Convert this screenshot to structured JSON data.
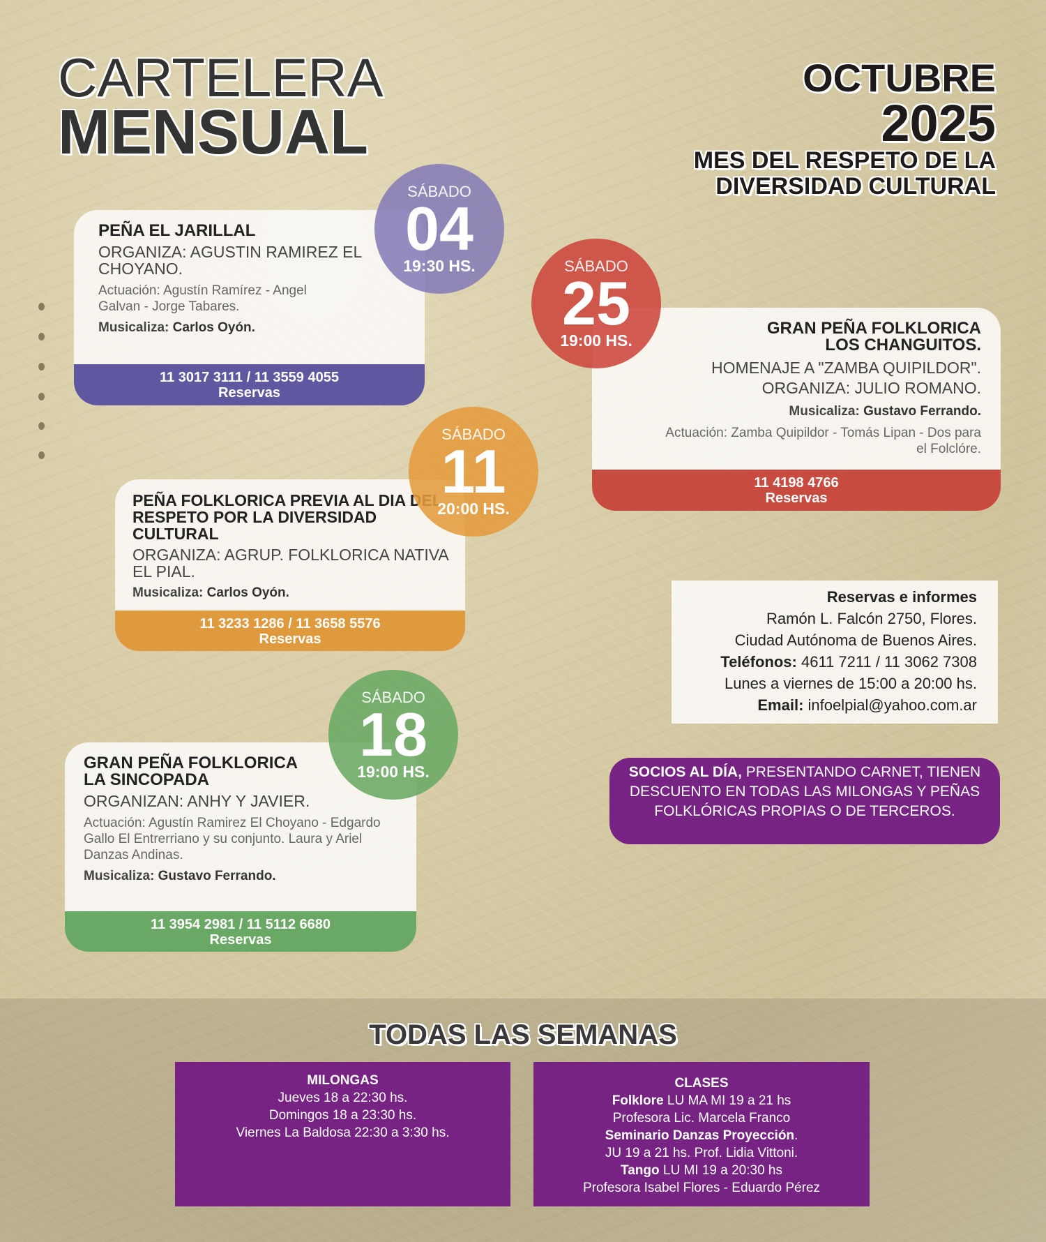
{
  "header": {
    "line1": "CARTELERA",
    "line2": "MENSUAL",
    "month": "OCTUBRE",
    "year": "2025",
    "subtitle1": "MES DEL RESPETO DE LA",
    "subtitle2": "DIVERSIDAD CULTURAL"
  },
  "events": [
    {
      "day": "SÁBADO",
      "date": "04",
      "time": "19:30 HS.",
      "title": "PEÑA EL JARILLAL",
      "org": "ORGANIZA: AGUSTIN RAMIREZ EL CHOYANO.",
      "act": "Actuación: Agustín Ramírez - Angel Galvan - Jorge Tabares.",
      "mus_label": "Musicaliza:",
      "mus": "Carlos Oyón.",
      "phone": "11 3017 3111 / 11 3559 4055",
      "res": "Reservas",
      "color": "#5f58a0"
    },
    {
      "day": "SÁBADO",
      "date": "25",
      "time": "19:00 HS.",
      "title": "GRAN PEÑA FOLKLORICA LOS CHANGUITOS.",
      "org": "HOMENAJE A \"ZAMBA QUIPILDOR\". ORGANIZA: JULIO ROMANO.",
      "act": "Actuación: Zamba Quipildor - Tomás Lipan - Dos para el Folclóre.",
      "mus_label": "Musicaliza:",
      "mus": "Gustavo Ferrando.",
      "phone": "11 4198 4766",
      "res": "Reservas",
      "color": "#c84b3f"
    },
    {
      "day": "SÁBADO",
      "date": "11",
      "time": "20:00 HS.",
      "title": "PEÑA FOLKLORICA PREVIA AL DIA DEL RESPETO POR LA DIVERSIDAD CULTURAL",
      "org": "ORGANIZA: AGRUP. FOLKLORICA NATIVA EL PIAL.",
      "mus_label": "Musicaliza:",
      "mus": "Carlos Oyón.",
      "phone": "11 3233 1286 / 11 3658 5576",
      "res": "Reservas",
      "color": "#e09a3e"
    },
    {
      "day": "SÁBADO",
      "date": "18",
      "time": "19:00 HS.",
      "title": "GRAN PEÑA FOLKLORICA LA SINCOPADA",
      "org": "ORGANIZAN: ANHY Y JAVIER.",
      "act": "Actuación: Agustín Ramirez El Choyano - Edgardo Gallo El Entrerriano y su conjunto. Laura y Ariel Danzas Andinas.",
      "mus_label": "Musicaliza:",
      "mus": "Gustavo Ferrando.",
      "phone": "11 3954 2981 / 11 5112 6680",
      "res": "Reservas",
      "color": "#6aa865"
    }
  ],
  "info": {
    "title": "Reservas e informes",
    "addr1": "Ramón L. Falcón 2750, Flores.",
    "addr2": "Ciudad Autónoma de Buenos Aires.",
    "tel_label": "Teléfonos:",
    "tel": "4611 7211 / 11 3062 7308",
    "hours": "Lunes a viernes de 15:00 a 20:00 hs.",
    "email_label": "Email:",
    "email": "infoelpial@yahoo.com.ar"
  },
  "socios": {
    "bold": "SOCIOS AL DÍA,",
    "text": "PRESENTANDO CARNET, TIENEN DESCUENTO EN TODAS LAS MILONGAS Y PEÑAS FOLKLÓRICAS PROPIAS O DE TERCEROS."
  },
  "weekly": {
    "title": "TODAS LAS SEMANAS",
    "milongas": {
      "title": "MILONGAS",
      "lines": [
        "Jueves 18 a 22:30 hs.",
        "Domingos 18 a 23:30 hs.",
        "Viernes La Baldosa 22:30 a 3:30 hs."
      ]
    },
    "clases": {
      "title": "CLASES",
      "l1b": "Folklore",
      "l1": "LU MA MI 19 a 21 hs",
      "l2": "Profesora Lic. Marcela Franco",
      "l3b": "Seminario Danzas Proyección",
      "l3": ".",
      "l4": "JU 19 a 21 hs. Prof. Lidia Vittoni.",
      "l5b": "Tango",
      "l5": "LU MI 19 a 20:30 hs",
      "l6": "Profesora Isabel Flores - Eduardo Pérez"
    }
  },
  "colors": {
    "purple": "#762383"
  }
}
